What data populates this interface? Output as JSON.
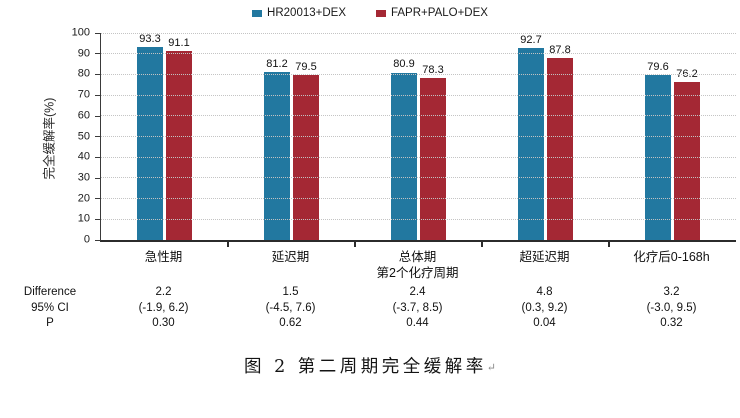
{
  "figure": {
    "caption": "图 2 第二周期完全缓解率",
    "caption_mark": "↵"
  },
  "chart_data": {
    "type": "bar",
    "title": "图 2 第二周期完全缓解率",
    "xlabel": "",
    "ylabel": "完全缓解率(%)",
    "ylim": [
      0,
      100
    ],
    "ytick_step": 10,
    "grid": "dotted-horizontal",
    "legend_position": "top",
    "categories": [
      [
        "急性期"
      ],
      [
        "延迟期"
      ],
      [
        "总体期",
        "第2个化疗周期"
      ],
      [
        "超延迟期"
      ],
      [
        "化疗后0-168h"
      ]
    ],
    "series": [
      {
        "name": "HR20013+DEX",
        "color": "#2278A0",
        "values": [
          93.3,
          81.2,
          80.9,
          92.7,
          79.6
        ]
      },
      {
        "name": "FAPR+PALO+DEX",
        "color": "#A42834",
        "values": [
          91.1,
          79.5,
          78.3,
          87.8,
          76.2
        ]
      }
    ],
    "stats_table": {
      "rows": [
        {
          "label": "Difference",
          "values": [
            "2.2",
            "1.5",
            "2.4",
            "4.8",
            "3.2"
          ]
        },
        {
          "label": "95% CI",
          "values": [
            "(-1.9, 6.2)",
            "(-4.5, 7.6)",
            "(-3.7, 8.5)",
            "(0.3, 9.2)",
            "(-3.0, 9.5)"
          ]
        },
        {
          "label": "P",
          "values": [
            "0.30",
            "0.62",
            "0.44",
            "0.04",
            "0.32"
          ]
        }
      ]
    }
  }
}
